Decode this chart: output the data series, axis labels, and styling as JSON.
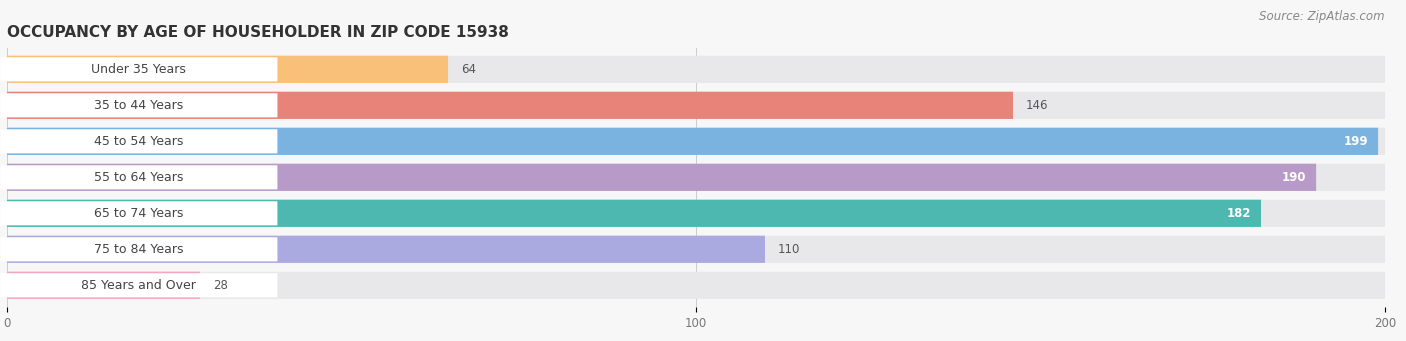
{
  "title": "OCCUPANCY BY AGE OF HOUSEHOLDER IN ZIP CODE 15938",
  "source": "Source: ZipAtlas.com",
  "categories": [
    "Under 35 Years",
    "35 to 44 Years",
    "45 to 54 Years",
    "55 to 64 Years",
    "65 to 74 Years",
    "75 to 84 Years",
    "85 Years and Over"
  ],
  "values": [
    64,
    146,
    199,
    190,
    182,
    110,
    28
  ],
  "bar_colors": [
    "#f9c07a",
    "#e8837a",
    "#7ab3e0",
    "#b89ac8",
    "#4db8b0",
    "#aaaae0",
    "#f4a8c0"
  ],
  "label_bg_color": "#ffffff",
  "bar_bg_color": "#e8e8ea",
  "background_color": "#f7f7f7",
  "xlim_max": 209,
  "xticks": [
    0,
    100,
    200
  ],
  "title_fontsize": 11,
  "label_fontsize": 9,
  "value_fontsize": 8.5,
  "source_fontsize": 8.5,
  "bar_height": 0.72,
  "value_threshold": 150
}
